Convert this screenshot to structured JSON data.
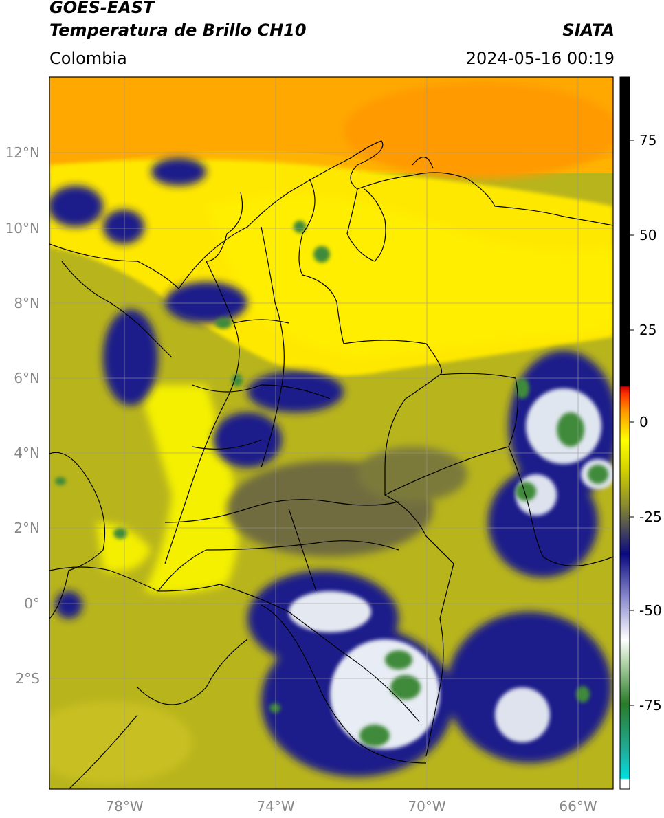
{
  "header": {
    "satellite": "GOES-EAST",
    "product": "Temperatura de Brillo CH10",
    "brand": "SIATA",
    "region": "Colombia",
    "timestamp": "2024-05-16 00:19"
  },
  "map": {
    "lat_ticks": [
      {
        "value": 12,
        "label": "12°N"
      },
      {
        "value": 10,
        "label": "10°N"
      },
      {
        "value": 8,
        "label": "8°N"
      },
      {
        "value": 6,
        "label": "6°N"
      },
      {
        "value": 4,
        "label": "4°N"
      },
      {
        "value": 2,
        "label": "2°N"
      },
      {
        "value": 0,
        "label": "0°"
      },
      {
        "value": -2,
        "label": "2°S"
      }
    ],
    "lon_ticks": [
      {
        "value": -78,
        "label": "78°W"
      },
      {
        "value": -74,
        "label": "74°W"
      },
      {
        "value": -70,
        "label": "70°W"
      },
      {
        "value": -66,
        "label": "66°W"
      }
    ],
    "extent": {
      "lon_min": -80,
      "lon_max": -65.1,
      "lat_min": -4.9,
      "lat_max": 14.0
    }
  },
  "colorbar": {
    "ticks": [
      {
        "value": 75,
        "label": "75"
      },
      {
        "value": 50,
        "label": "50"
      },
      {
        "value": 25,
        "label": "25"
      },
      {
        "value": 0,
        "label": "0"
      },
      {
        "value": -25,
        "label": "-25"
      },
      {
        "value": -50,
        "label": "-50"
      },
      {
        "value": -75,
        "label": "-75"
      }
    ],
    "range": [
      -93,
      90
    ]
  }
}
